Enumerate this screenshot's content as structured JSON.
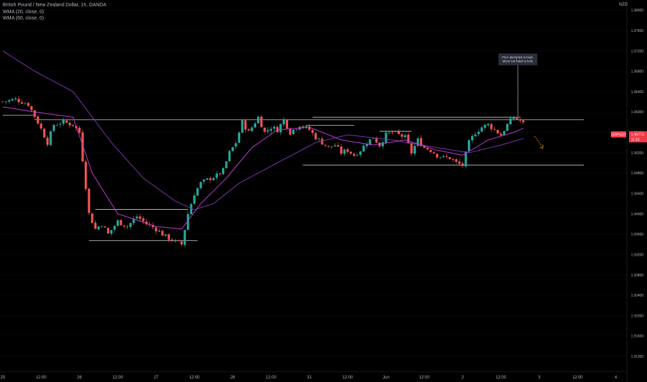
{
  "title": "British Pound / New Zealand Dollar, 1h, OANDA",
  "indicators": [
    "WMA (20, close, 0)",
    "WMA (60, close, 0)"
  ],
  "currency": "NZD",
  "price_tag": {
    "symbol": "GBPNZD",
    "price": "1.95773",
    "countdown": "11:53"
  },
  "annotation": "Price attempted to trade above but failed to hold.",
  "colors": {
    "up": "#26a69a",
    "down": "#ef5350",
    "wma20": "#c23bd4",
    "wma60": "#7b35b0",
    "line": "#d1d4dc",
    "arrow": "#f7a600",
    "tag": "#f23645",
    "bg": "#000000"
  },
  "chart_data": {
    "type": "candlestick",
    "title": "British Pound / New Zealand Dollar, 1h, OANDA",
    "y_range": [
      1.909,
      1.982
    ],
    "y_ticks": [
      "1.98000",
      "1.97600",
      "1.97200",
      "1.96800",
      "1.96400",
      "1.96000",
      "1.95600",
      "1.95200",
      "1.94800",
      "1.94400",
      "1.94000",
      "1.93600",
      "1.93200",
      "1.92800",
      "1.92400",
      "1.92000",
      "1.91600",
      "1.91200"
    ],
    "x_ticks": [
      {
        "label": "25",
        "bar": 0
      },
      {
        "label": "12:00",
        "bar": 12
      },
      {
        "label": "26",
        "bar": 24
      },
      {
        "label": "12:00",
        "bar": 36
      },
      {
        "label": "27",
        "bar": 48
      },
      {
        "label": "12:00",
        "bar": 60
      },
      {
        "label": "28",
        "bar": 72
      },
      {
        "label": "12:00",
        "bar": 84
      },
      {
        "label": "31",
        "bar": 96
      },
      {
        "label": "12:00",
        "bar": 108
      },
      {
        "label": "Jun",
        "bar": 120
      },
      {
        "label": "12:00",
        "bar": 132
      },
      {
        "label": "2",
        "bar": 144
      },
      {
        "label": "12:00",
        "bar": 156
      },
      {
        "label": "3",
        "bar": 168
      },
      {
        "label": "12:00",
        "bar": 180
      },
      {
        "label": "4",
        "bar": 192
      }
    ],
    "bars_total": 195,
    "anchors": [
      [
        0,
        1.962
      ],
      [
        4,
        1.9625
      ],
      [
        8,
        1.9615
      ],
      [
        11,
        1.958
      ],
      [
        14,
        1.954
      ],
      [
        16,
        1.9575
      ],
      [
        19,
        1.958
      ],
      [
        22,
        1.9575
      ],
      [
        24,
        1.956
      ],
      [
        27,
        1.94
      ],
      [
        29,
        1.937
      ],
      [
        31,
        1.938
      ],
      [
        33,
        1.936
      ],
      [
        36,
        1.9385
      ],
      [
        39,
        1.9375
      ],
      [
        42,
        1.9395
      ],
      [
        45,
        1.938
      ],
      [
        48,
        1.937
      ],
      [
        51,
        1.9355
      ],
      [
        54,
        1.9345
      ],
      [
        56,
        1.934
      ],
      [
        58,
        1.94
      ],
      [
        60,
        1.944
      ],
      [
        62,
        1.946
      ],
      [
        65,
        1.947
      ],
      [
        67,
        1.9475
      ],
      [
        69,
        1.9485
      ],
      [
        71,
        1.952
      ],
      [
        73,
        1.954
      ],
      [
        75,
        1.958
      ],
      [
        77,
        1.956
      ],
      [
        80,
        1.959
      ],
      [
        82,
        1.956
      ],
      [
        84,
        1.957
      ],
      [
        86,
        1.9565
      ],
      [
        88,
        1.9585
      ],
      [
        90,
        1.956
      ],
      [
        93,
        1.9575
      ],
      [
        96,
        1.9565
      ],
      [
        98,
        1.955
      ],
      [
        100,
        1.954
      ],
      [
        102,
        1.953
      ],
      [
        104,
        1.9535
      ],
      [
        106,
        1.952
      ],
      [
        108,
        1.9525
      ],
      [
        110,
        1.9515
      ],
      [
        112,
        1.9525
      ],
      [
        114,
        1.954
      ],
      [
        116,
        1.955
      ],
      [
        118,
        1.9535
      ],
      [
        120,
        1.9555
      ],
      [
        122,
        1.956
      ],
      [
        124,
        1.9555
      ],
      [
        126,
        1.955
      ],
      [
        128,
        1.952
      ],
      [
        130,
        1.9545
      ],
      [
        132,
        1.953
      ],
      [
        134,
        1.9525
      ],
      [
        136,
        1.9515
      ],
      [
        138,
        1.951
      ],
      [
        140,
        1.951
      ],
      [
        142,
        1.95
      ],
      [
        144,
        1.9495
      ],
      [
        146,
        1.954
      ],
      [
        148,
        1.956
      ],
      [
        150,
        1.957
      ],
      [
        152,
        1.9575
      ],
      [
        154,
        1.9565
      ],
      [
        156,
        1.9555
      ],
      [
        158,
        1.9575
      ],
      [
        160,
        1.959
      ],
      [
        162,
        1.9583
      ],
      [
        163,
        1.9577
      ]
    ],
    "wma20": [
      [
        0,
        1.961
      ],
      [
        10,
        1.96
      ],
      [
        22,
        1.959
      ],
      [
        28,
        1.948
      ],
      [
        36,
        1.94
      ],
      [
        48,
        1.9375
      ],
      [
        56,
        1.937
      ],
      [
        62,
        1.942
      ],
      [
        70,
        1.947
      ],
      [
        78,
        1.953
      ],
      [
        86,
        1.9565
      ],
      [
        96,
        1.957
      ],
      [
        106,
        1.9545
      ],
      [
        116,
        1.9535
      ],
      [
        126,
        1.9545
      ],
      [
        136,
        1.9525
      ],
      [
        144,
        1.9515
      ],
      [
        152,
        1.9545
      ],
      [
        160,
        1.956
      ],
      [
        163,
        1.9568
      ]
    ],
    "wma60": [
      [
        0,
        1.972
      ],
      [
        10,
        1.968
      ],
      [
        22,
        1.964
      ],
      [
        34,
        1.954
      ],
      [
        44,
        1.947
      ],
      [
        54,
        1.9425
      ],
      [
        60,
        1.9408
      ],
      [
        66,
        1.942
      ],
      [
        74,
        1.946
      ],
      [
        86,
        1.95
      ],
      [
        98,
        1.954
      ],
      [
        108,
        1.9555
      ],
      [
        122,
        1.9545
      ],
      [
        136,
        1.953
      ],
      [
        146,
        1.952
      ],
      [
        156,
        1.9535
      ],
      [
        163,
        1.9548
      ]
    ],
    "lines": [
      {
        "from": 0,
        "to": 10,
        "price": 1.95935
      },
      {
        "from": 10,
        "to": 192,
        "price": 1.9585
      },
      {
        "from": 97,
        "to": 162,
        "price": 1.95895
      },
      {
        "from": 95,
        "to": 110,
        "price": 1.95735
      },
      {
        "from": 118,
        "to": 128,
        "price": 1.9562
      },
      {
        "from": 94,
        "to": 192,
        "price": 1.94955
      },
      {
        "from": 29,
        "to": 58,
        "price": 1.94085
      },
      {
        "from": 27,
        "to": 61,
        "price": 1.9347
      }
    ]
  }
}
